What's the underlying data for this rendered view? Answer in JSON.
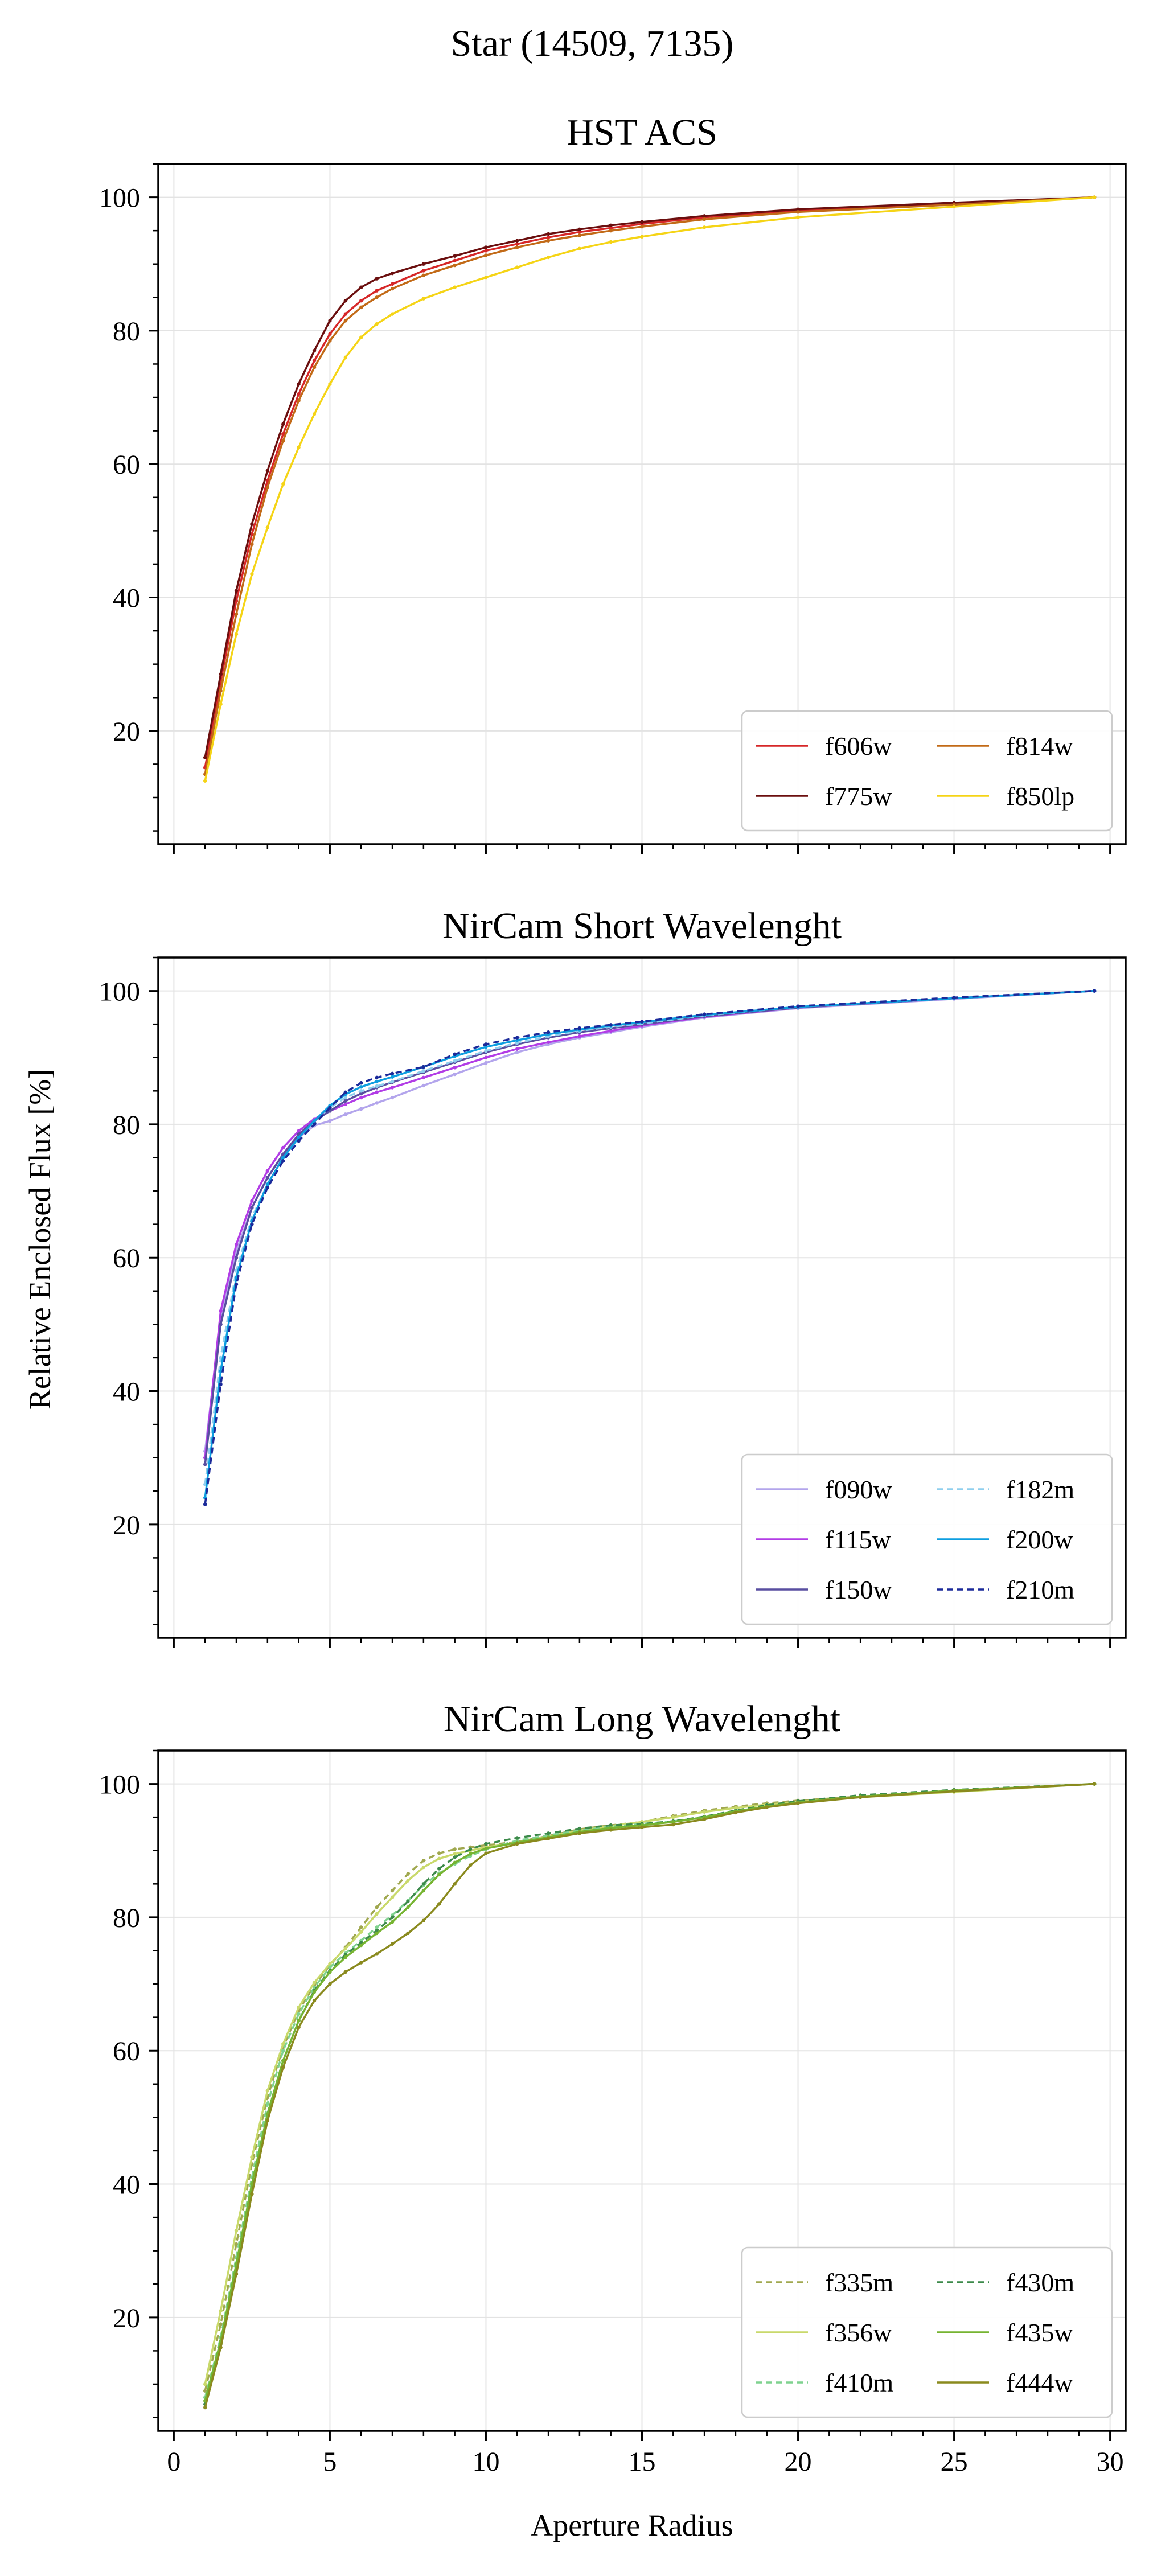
{
  "figure": {
    "suptitle": "Star (14509, 7135)",
    "ylabel": "Relative Enclosed Flux [%]",
    "xlabel": "Aperture Radius"
  },
  "chart_data": [
    {
      "type": "line",
      "title": "HST ACS",
      "xlim": [
        -0.5,
        30.5
      ],
      "ylim": [
        3,
        105
      ],
      "xticks": [
        0,
        5,
        10,
        15,
        20,
        25,
        30
      ],
      "yticks": [
        20,
        40,
        60,
        80,
        100
      ],
      "grid": true,
      "markers": true,
      "legend_position": "lower-right",
      "legend_columns": 2,
      "x": [
        1,
        1.5,
        2,
        2.5,
        3,
        3.5,
        4,
        4.5,
        5,
        5.5,
        6,
        6.5,
        7,
        8,
        9,
        10,
        11,
        12,
        13,
        14,
        15,
        17,
        20,
        25,
        29.5
      ],
      "series": [
        {
          "name": "f606w",
          "color": "#d62728",
          "dashed": false,
          "values": [
            14.5,
            27.5,
            39.5,
            49.5,
            57.5,
            64.5,
            70.5,
            75.5,
            79.5,
            82.5,
            84.5,
            86,
            87,
            89,
            90.5,
            92,
            93,
            94,
            94.8,
            95.4,
            96,
            97,
            98,
            99,
            100
          ]
        },
        {
          "name": "f775w",
          "color": "#6b0f0f",
          "dashed": false,
          "values": [
            16,
            28.5,
            41,
            51,
            59,
            66,
            72,
            77,
            81.5,
            84.5,
            86.5,
            87.8,
            88.6,
            90,
            91.2,
            92.5,
            93.5,
            94.5,
            95.2,
            95.8,
            96.3,
            97.2,
            98.2,
            99.2,
            100
          ]
        },
        {
          "name": "f814w",
          "color": "#c26a17",
          "dashed": false,
          "values": [
            13.5,
            26,
            37.5,
            48,
            56.5,
            63.5,
            69.5,
            74.5,
            78.5,
            81.5,
            83.5,
            85,
            86.3,
            88.3,
            89.8,
            91.3,
            92.5,
            93.5,
            94.3,
            95,
            95.6,
            96.7,
            97.8,
            98.9,
            100
          ]
        },
        {
          "name": "f850lp",
          "color": "#f5d416",
          "dashed": false,
          "values": [
            12.5,
            24,
            34.5,
            43.5,
            50.5,
            57,
            62.5,
            67.5,
            72,
            76,
            79,
            81,
            82.5,
            84.8,
            86.5,
            88,
            89.5,
            91,
            92.3,
            93.3,
            94.1,
            95.5,
            97,
            98.6,
            100
          ]
        }
      ]
    },
    {
      "type": "line",
      "title": "NirCam Short Wavelenght",
      "xlim": [
        -0.5,
        30.5
      ],
      "ylim": [
        3,
        105
      ],
      "xticks": [
        0,
        5,
        10,
        15,
        20,
        25,
        30
      ],
      "yticks": [
        20,
        40,
        60,
        80,
        100
      ],
      "grid": true,
      "markers": true,
      "legend_position": "lower-right",
      "legend_columns": 2,
      "x": [
        1,
        1.5,
        2,
        2.5,
        3,
        3.5,
        4,
        4.5,
        5,
        5.5,
        6,
        6.5,
        7,
        8,
        9,
        10,
        11,
        12,
        13,
        14,
        15,
        17,
        20,
        25,
        29.5
      ],
      "series": [
        {
          "name": "f090w",
          "color": "#b3a5ec",
          "dashed": false,
          "values": [
            31,
            51,
            61,
            67.5,
            72,
            75.5,
            78,
            79.8,
            80.5,
            81.5,
            82.3,
            83.2,
            84,
            85.8,
            87.5,
            89.2,
            90.8,
            92,
            93,
            93.8,
            94.6,
            96,
            97.4,
            98.8,
            100
          ]
        },
        {
          "name": "f115w",
          "color": "#b23ce6",
          "dashed": false,
          "values": [
            30,
            52,
            62,
            68.5,
            73,
            76.5,
            79,
            80.8,
            82,
            83,
            84,
            84.8,
            85.5,
            87,
            88.5,
            90,
            91.3,
            92.3,
            93.2,
            94,
            94.8,
            96.1,
            97.5,
            98.9,
            100
          ]
        },
        {
          "name": "f150w",
          "color": "#584ea0",
          "dashed": false,
          "values": [
            29,
            50,
            60,
            67.5,
            72,
            75.5,
            78.5,
            80.5,
            82,
            83.5,
            84.6,
            85.5,
            86.3,
            87.8,
            89.3,
            90.8,
            92,
            93,
            93.8,
            94.4,
            95,
            96.2,
            97.5,
            98.9,
            100
          ]
        },
        {
          "name": "f182m",
          "color": "#8fcfee",
          "dashed": true,
          "values": [
            26,
            45,
            58,
            66,
            71,
            75,
            78,
            80.5,
            82.5,
            84,
            85,
            85.7,
            86.4,
            88,
            89.5,
            91,
            92.2,
            93.2,
            94,
            94.6,
            95.1,
            96.3,
            97.6,
            98.9,
            100
          ]
        },
        {
          "name": "f200w",
          "color": "#0d9ee0",
          "dashed": false,
          "values": [
            24,
            43,
            57,
            65.5,
            71,
            75,
            78,
            80.5,
            82.8,
            84.5,
            85.6,
            86.4,
            87.1,
            88.6,
            90.2,
            91.6,
            92.6,
            93.5,
            94.2,
            94.8,
            95.3,
            96.4,
            97.6,
            98.9,
            100
          ]
        },
        {
          "name": "f210m",
          "color": "#1b2a9a",
          "dashed": true,
          "values": [
            23,
            41,
            56,
            65,
            70.5,
            74.5,
            77.5,
            80,
            82.5,
            84.8,
            86.2,
            87,
            87.6,
            88.6,
            90.5,
            92,
            93,
            93.8,
            94.4,
            94.9,
            95.4,
            96.5,
            97.7,
            99,
            100
          ]
        }
      ]
    },
    {
      "type": "line",
      "title": "NirCam Long Wavelenght",
      "xlim": [
        -0.5,
        30.5
      ],
      "ylim": [
        3,
        105
      ],
      "xticks": [
        0,
        5,
        10,
        15,
        20,
        25,
        30
      ],
      "yticks": [
        20,
        40,
        60,
        80,
        100
      ],
      "grid": true,
      "markers": true,
      "legend_position": "lower-right",
      "legend_columns": 2,
      "x": [
        1,
        1.5,
        2,
        2.5,
        3,
        3.5,
        4,
        4.5,
        5,
        5.5,
        6,
        6.5,
        7,
        7.5,
        8,
        8.5,
        9,
        9.5,
        10,
        11,
        12,
        13,
        14,
        15,
        16,
        17,
        18,
        19,
        20,
        22,
        25,
        29.5
      ],
      "series": [
        {
          "name": "f335m",
          "color": "#a0a84f",
          "dashed": true,
          "values": [
            9,
            19,
            31,
            43,
            53,
            60.5,
            66,
            69.8,
            72.8,
            75.5,
            78.5,
            81.5,
            84,
            86.5,
            88.5,
            89.6,
            90.2,
            90.5,
            90.8,
            91.3,
            92.2,
            93.2,
            93.8,
            94.3,
            95.2,
            96,
            96.6,
            97.1,
            97.5,
            98.1,
            98.9,
            100
          ]
        },
        {
          "name": "f356w",
          "color": "#c9d96b",
          "dashed": false,
          "values": [
            10,
            21,
            33,
            44,
            54,
            61,
            66.5,
            70.2,
            73,
            75.3,
            77.8,
            80.5,
            83,
            85.5,
            87.5,
            88.8,
            89.5,
            90,
            90.5,
            91.2,
            92.1,
            93,
            93.7,
            94.3,
            95,
            95.8,
            96.4,
            96.9,
            97.3,
            98,
            98.8,
            100
          ]
        },
        {
          "name": "f410m",
          "color": "#7fd28f",
          "dashed": true,
          "values": [
            8,
            17,
            29,
            41,
            52,
            60,
            65.5,
            69.5,
            72.5,
            74.6,
            76.5,
            78.5,
            80.3,
            82.5,
            84.8,
            86.6,
            88,
            89.2,
            90.2,
            91.5,
            92.3,
            93,
            93.6,
            94,
            94.4,
            95,
            95.8,
            96.6,
            97.2,
            98.1,
            98.9,
            100
          ]
        },
        {
          "name": "f430m",
          "color": "#3c8a4a",
          "dashed": true,
          "values": [
            7,
            16,
            27.5,
            39.5,
            50.5,
            58.5,
            64.5,
            69,
            72,
            74.4,
            76.2,
            78,
            80,
            82.4,
            85,
            87.3,
            89,
            90.2,
            91,
            91.9,
            92.6,
            93.3,
            93.8,
            94,
            94.4,
            95.1,
            96,
            96.8,
            97.4,
            98.3,
            99.1,
            100
          ]
        },
        {
          "name": "f435w",
          "color": "#76b431",
          "dashed": false,
          "values": [
            7.5,
            16.5,
            28,
            40,
            50.5,
            58.5,
            64.5,
            68.8,
            71.8,
            74,
            75.8,
            77.6,
            79.3,
            81.5,
            84,
            86.4,
            88.2,
            89.5,
            90.3,
            91.2,
            92,
            92.8,
            93.4,
            93.8,
            94.3,
            95,
            95.9,
            96.6,
            97.2,
            98.1,
            99,
            100
          ]
        },
        {
          "name": "f444w",
          "color": "#8a8a1e",
          "dashed": false,
          "values": [
            6.5,
            15.5,
            26.5,
            38.5,
            49.5,
            57.5,
            63.5,
            67.5,
            70,
            71.8,
            73.2,
            74.5,
            76,
            77.6,
            79.5,
            82,
            85,
            87.8,
            89.6,
            91,
            91.8,
            92.6,
            93.1,
            93.5,
            93.9,
            94.7,
            95.7,
            96.5,
            97.1,
            98,
            98.9,
            100
          ]
        }
      ]
    }
  ]
}
